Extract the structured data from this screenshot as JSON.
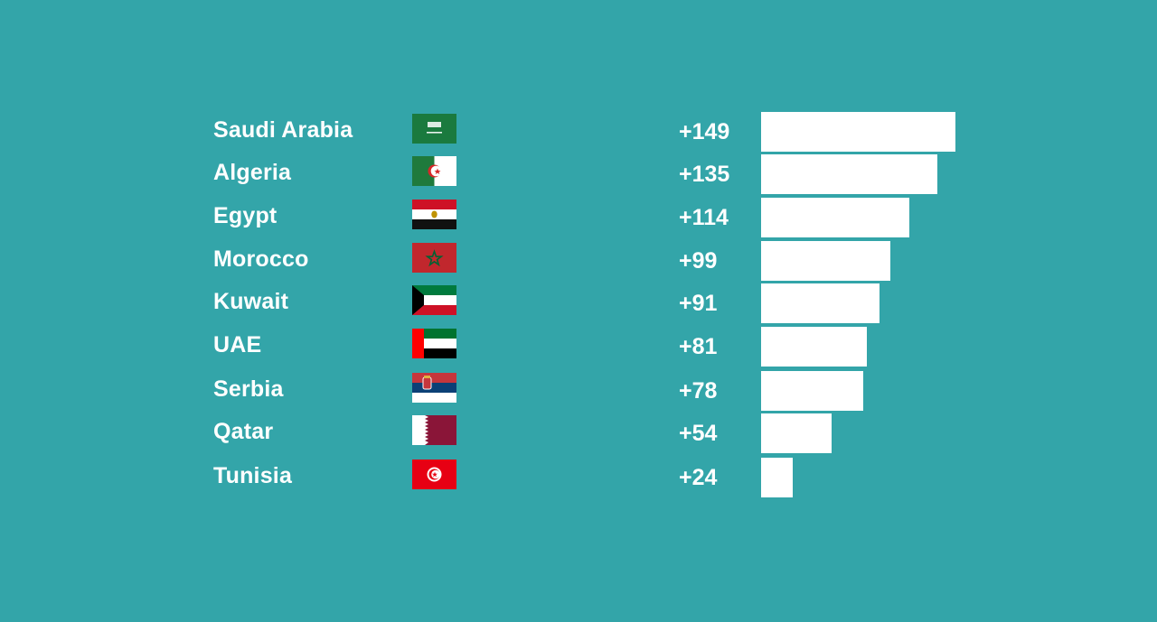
{
  "colors": {
    "background": "#33a5a9",
    "bar": "#ffffff",
    "text": "#ffffff"
  },
  "chart_data": {
    "type": "bar",
    "orientation": "horizontal",
    "categories": [
      "Saudi Arabia",
      "Algeria",
      "Egypt",
      "Morocco",
      "Kuwait",
      "UAE",
      "Serbia",
      "Qatar",
      "Tunisia"
    ],
    "values": [
      149,
      135,
      114,
      99,
      91,
      81,
      78,
      54,
      24
    ],
    "value_labels": [
      "+149",
      "+135",
      "+114",
      "+99",
      "+91",
      "+81",
      "+78",
      "+54",
      "+24"
    ],
    "flags": [
      "saudi-arabia-flag-icon",
      "algeria-flag-icon",
      "egypt-flag-icon",
      "morocco-flag-icon",
      "kuwait-flag-icon",
      "uae-flag-icon",
      "serbia-flag-icon",
      "qatar-flag-icon",
      "tunisia-flag-icon"
    ],
    "xlim": [
      0,
      149
    ],
    "grid": false,
    "legend": "none"
  }
}
